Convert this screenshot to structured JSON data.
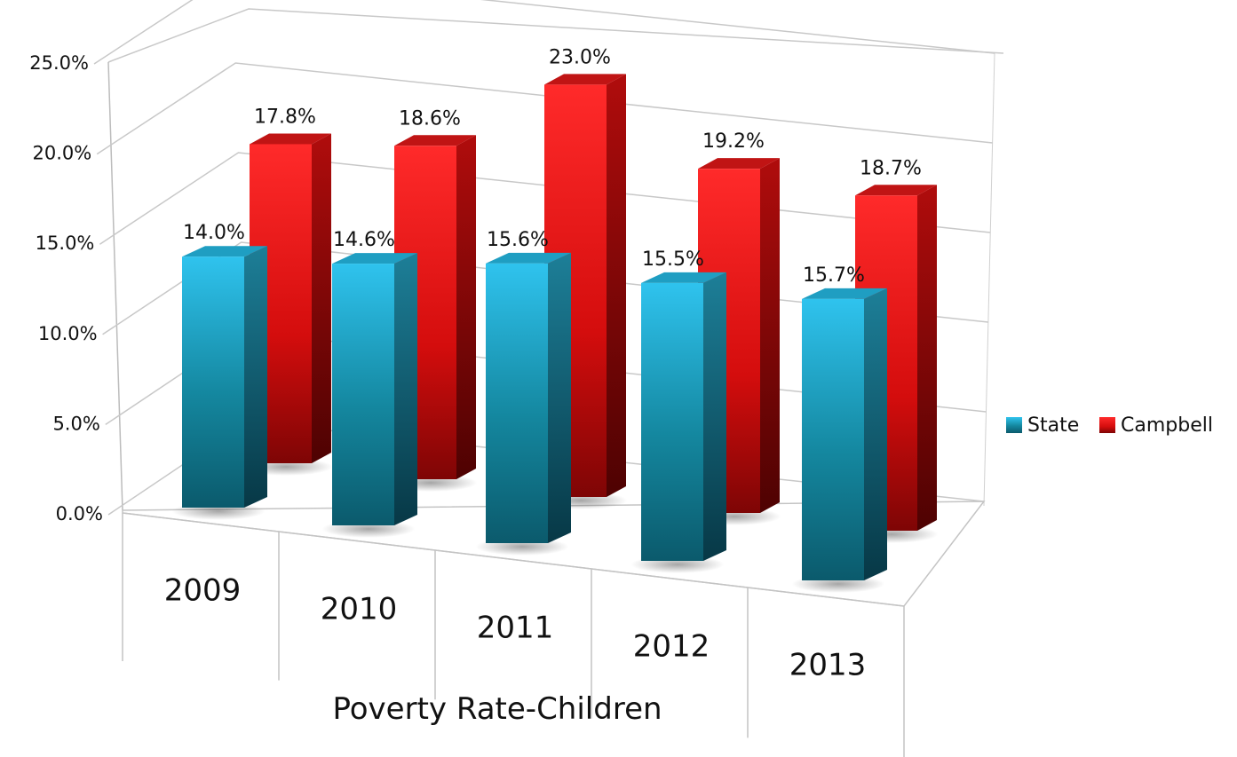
{
  "chart_data": {
    "type": "bar",
    "categories": [
      "2009",
      "2010",
      "2011",
      "2012",
      "2013"
    ],
    "series": [
      {
        "name": "State",
        "values": [
          14.0,
          14.6,
          15.6,
          15.5,
          15.7
        ],
        "labels": [
          "14.0%",
          "14.6%",
          "15.6%",
          "15.5%",
          "15.7%"
        ],
        "color": "#1aa3cc"
      },
      {
        "name": "Campbell",
        "values": [
          17.8,
          18.6,
          23.0,
          19.2,
          18.7
        ],
        "labels": [
          "17.8%",
          "18.6%",
          "23.0%",
          "19.2%",
          "18.7%"
        ],
        "color": "#e81010"
      }
    ],
    "y_ticks": [
      "0.0%",
      "5.0%",
      "10.0%",
      "15.0%",
      "20.0%",
      "25.0%"
    ],
    "ylim": [
      0,
      25
    ],
    "xlabel": "Poverty Rate-Children",
    "ylabel": "",
    "title": "",
    "grid": true,
    "legend_position": "right",
    "style": "3d-clustered-column"
  }
}
